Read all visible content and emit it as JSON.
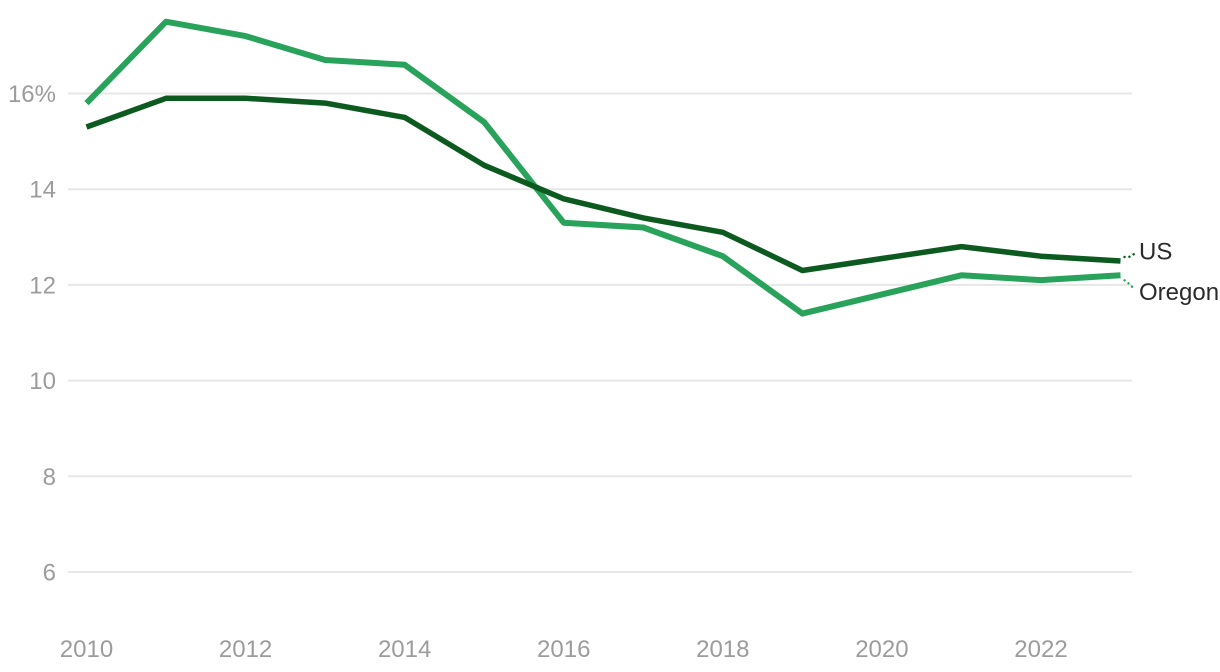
{
  "chart_data": {
    "type": "line",
    "title": "",
    "xlabel": "",
    "ylabel": "",
    "x_range": [
      2010,
      2023
    ],
    "ylim": [
      5.8,
      17.6
    ],
    "grid": true,
    "legend_position": "right-of-line-ends",
    "y_gridlines": [
      6,
      8,
      10,
      12,
      14,
      16
    ],
    "y_tick_labels": [
      "6",
      "8",
      "10",
      "12",
      "14",
      "16%"
    ],
    "x_tick_labels": [
      "2010",
      "2012",
      "2014",
      "2016",
      "2018",
      "2020",
      "2022"
    ],
    "x_tick_years": [
      2010,
      2012,
      2014,
      2016,
      2018,
      2020,
      2022
    ],
    "series": [
      {
        "name": "US",
        "color": "#0d5a21",
        "points": [
          [
            2010,
            15.3
          ],
          [
            2011,
            15.9
          ],
          [
            2012,
            15.9
          ],
          [
            2013,
            15.8
          ],
          [
            2014,
            15.5
          ],
          [
            2015,
            14.5
          ],
          [
            2016,
            13.8
          ],
          [
            2017,
            13.4
          ],
          [
            2018,
            13.1
          ],
          [
            2019,
            12.3
          ],
          [
            2021,
            12.8
          ],
          [
            2022,
            12.6
          ],
          [
            2023,
            12.5
          ]
        ]
      },
      {
        "name": "Oregon",
        "color": "#29a35c",
        "points": [
          [
            2010,
            15.8
          ],
          [
            2011,
            17.5
          ],
          [
            2012,
            17.2
          ],
          [
            2013,
            16.7
          ],
          [
            2014,
            16.6
          ],
          [
            2015,
            15.4
          ],
          [
            2016,
            13.3
          ],
          [
            2017,
            13.2
          ],
          [
            2018,
            12.6
          ],
          [
            2019,
            11.4
          ],
          [
            2021,
            12.2
          ],
          [
            2022,
            12.1
          ],
          [
            2023,
            12.2
          ]
        ]
      }
    ],
    "colors": {
      "background": "#ffffff",
      "gridline": "#e7e7e7",
      "tick_label": "#9c9c9c",
      "series_label_text": "#2b2b2b"
    }
  }
}
